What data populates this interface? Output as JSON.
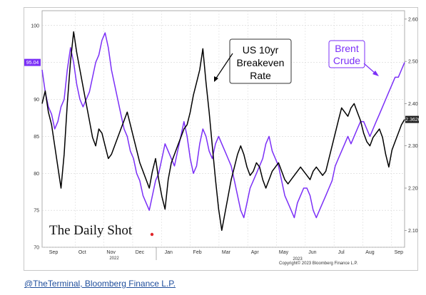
{
  "chart_data": {
    "type": "line",
    "x_labels": [
      "Sep",
      "Oct",
      "Nov",
      "Dec",
      "Jan",
      "Feb",
      "Mar",
      "Apr",
      "May",
      "Jun",
      "Jul",
      "Aug",
      "Sep"
    ],
    "year_labels": [
      "2022",
      "2023"
    ],
    "left_axis": {
      "ylim": [
        70,
        102
      ],
      "ticks": [
        70,
        75,
        80,
        85,
        90,
        95,
        100
      ],
      "units": "USD/bbl"
    },
    "right_axis": {
      "ylim": [
        2.06,
        2.62
      ],
      "ticks": [
        "2.10",
        "2.20",
        "2.30",
        "2.40",
        "2.50",
        "2.60"
      ]
    },
    "grid": true,
    "series": [
      {
        "name": "Brent Crude",
        "axis": "left",
        "color": "#7b2ff7",
        "last_value_label": "95.04",
        "values": [
          [
            0,
            94
          ],
          [
            1,
            91
          ],
          [
            2,
            89
          ],
          [
            3,
            88
          ],
          [
            4,
            86
          ],
          [
            5,
            87
          ],
          [
            6,
            89
          ],
          [
            7,
            90
          ],
          [
            8,
            94
          ],
          [
            9,
            97
          ],
          [
            10,
            95
          ],
          [
            11,
            92
          ],
          [
            12,
            90
          ],
          [
            13,
            89
          ],
          [
            14,
            90
          ],
          [
            15,
            91
          ],
          [
            16,
            93
          ],
          [
            17,
            95
          ],
          [
            18,
            96
          ],
          [
            19,
            98
          ],
          [
            20,
            99
          ],
          [
            21,
            97
          ],
          [
            22,
            94
          ],
          [
            23,
            92
          ],
          [
            24,
            90
          ],
          [
            25,
            88
          ],
          [
            26,
            86
          ],
          [
            27,
            85
          ],
          [
            28,
            83
          ],
          [
            29,
            82
          ],
          [
            30,
            80
          ],
          [
            31,
            79
          ],
          [
            32,
            77
          ],
          [
            33,
            76
          ],
          [
            34,
            75
          ],
          [
            35,
            77
          ],
          [
            36,
            79
          ],
          [
            37,
            80
          ],
          [
            38,
            82
          ],
          [
            39,
            84
          ],
          [
            40,
            83
          ],
          [
            41,
            82
          ],
          [
            42,
            81
          ],
          [
            43,
            83
          ],
          [
            44,
            85
          ],
          [
            45,
            87
          ],
          [
            46,
            85
          ],
          [
            47,
            82
          ],
          [
            48,
            80
          ],
          [
            49,
            81
          ],
          [
            50,
            84
          ],
          [
            51,
            86
          ],
          [
            52,
            85
          ],
          [
            53,
            83
          ],
          [
            54,
            82
          ],
          [
            55,
            84
          ],
          [
            56,
            85
          ],
          [
            57,
            84
          ],
          [
            58,
            83
          ],
          [
            59,
            82
          ],
          [
            60,
            81
          ],
          [
            61,
            79
          ],
          [
            62,
            77
          ],
          [
            63,
            75
          ],
          [
            64,
            74
          ],
          [
            65,
            76
          ],
          [
            66,
            78
          ],
          [
            67,
            79
          ],
          [
            68,
            80
          ],
          [
            69,
            81
          ],
          [
            70,
            82
          ],
          [
            71,
            84
          ],
          [
            72,
            85
          ],
          [
            73,
            83
          ],
          [
            74,
            82
          ],
          [
            75,
            81
          ],
          [
            76,
            79
          ],
          [
            77,
            77
          ],
          [
            78,
            76
          ],
          [
            79,
            75
          ],
          [
            80,
            74
          ],
          [
            81,
            76
          ],
          [
            82,
            77
          ],
          [
            83,
            78
          ],
          [
            84,
            78
          ],
          [
            85,
            77
          ],
          [
            86,
            75
          ],
          [
            87,
            74
          ],
          [
            88,
            75
          ],
          [
            89,
            76
          ],
          [
            90,
            77
          ],
          [
            91,
            78
          ],
          [
            92,
            79
          ],
          [
            93,
            81
          ],
          [
            94,
            82
          ],
          [
            95,
            83
          ],
          [
            96,
            84
          ],
          [
            97,
            85
          ],
          [
            98,
            84
          ],
          [
            99,
            85
          ],
          [
            100,
            86
          ],
          [
            101,
            87
          ],
          [
            102,
            87
          ],
          [
            103,
            86
          ],
          [
            104,
            85
          ],
          [
            105,
            86
          ],
          [
            106,
            87
          ],
          [
            107,
            88
          ],
          [
            108,
            89
          ],
          [
            109,
            90
          ],
          [
            110,
            91
          ],
          [
            111,
            92
          ],
          [
            112,
            93
          ],
          [
            113,
            93
          ],
          [
            114,
            94
          ],
          [
            115,
            95
          ]
        ]
      },
      {
        "name": "US 10yr Breakeven Rate",
        "axis": "right",
        "color": "#000000",
        "last_value_label": "2.3626",
        "values": [
          [
            0,
            2.4
          ],
          [
            1,
            2.43
          ],
          [
            2,
            2.38
          ],
          [
            3,
            2.35
          ],
          [
            4,
            2.3
          ],
          [
            5,
            2.25
          ],
          [
            6,
            2.2
          ],
          [
            7,
            2.28
          ],
          [
            8,
            2.4
          ],
          [
            9,
            2.5
          ],
          [
            10,
            2.57
          ],
          [
            11,
            2.52
          ],
          [
            12,
            2.48
          ],
          [
            13,
            2.44
          ],
          [
            14,
            2.4
          ],
          [
            15,
            2.36
          ],
          [
            16,
            2.32
          ],
          [
            17,
            2.3
          ],
          [
            18,
            2.34
          ],
          [
            19,
            2.33
          ],
          [
            20,
            2.3
          ],
          [
            21,
            2.27
          ],
          [
            22,
            2.28
          ],
          [
            23,
            2.3
          ],
          [
            24,
            2.32
          ],
          [
            25,
            2.34
          ],
          [
            26,
            2.36
          ],
          [
            27,
            2.38
          ],
          [
            28,
            2.35
          ],
          [
            29,
            2.32
          ],
          [
            30,
            2.29
          ],
          [
            31,
            2.26
          ],
          [
            32,
            2.24
          ],
          [
            33,
            2.22
          ],
          [
            34,
            2.2
          ],
          [
            35,
            2.24
          ],
          [
            36,
            2.27
          ],
          [
            37,
            2.22
          ],
          [
            38,
            2.18
          ],
          [
            39,
            2.15
          ],
          [
            40,
            2.22
          ],
          [
            41,
            2.26
          ],
          [
            42,
            2.28
          ],
          [
            43,
            2.3
          ],
          [
            44,
            2.32
          ],
          [
            45,
            2.34
          ],
          [
            46,
            2.35
          ],
          [
            47,
            2.38
          ],
          [
            48,
            2.42
          ],
          [
            49,
            2.45
          ],
          [
            50,
            2.48
          ],
          [
            51,
            2.53
          ],
          [
            52,
            2.45
          ],
          [
            53,
            2.38
          ],
          [
            54,
            2.3
          ],
          [
            55,
            2.22
          ],
          [
            56,
            2.15
          ],
          [
            57,
            2.1
          ],
          [
            58,
            2.14
          ],
          [
            59,
            2.18
          ],
          [
            60,
            2.22
          ],
          [
            61,
            2.25
          ],
          [
            62,
            2.28
          ],
          [
            63,
            2.3
          ],
          [
            64,
            2.28
          ],
          [
            65,
            2.25
          ],
          [
            66,
            2.23
          ],
          [
            67,
            2.24
          ],
          [
            68,
            2.26
          ],
          [
            69,
            2.25
          ],
          [
            70,
            2.22
          ],
          [
            71,
            2.2
          ],
          [
            72,
            2.22
          ],
          [
            73,
            2.24
          ],
          [
            74,
            2.25
          ],
          [
            75,
            2.26
          ],
          [
            76,
            2.24
          ],
          [
            77,
            2.22
          ],
          [
            78,
            2.21
          ],
          [
            79,
            2.22
          ],
          [
            80,
            2.23
          ],
          [
            81,
            2.24
          ],
          [
            82,
            2.25
          ],
          [
            83,
            2.24
          ],
          [
            84,
            2.23
          ],
          [
            85,
            2.22
          ],
          [
            86,
            2.24
          ],
          [
            87,
            2.25
          ],
          [
            88,
            2.24
          ],
          [
            89,
            2.23
          ],
          [
            90,
            2.24
          ],
          [
            91,
            2.27
          ],
          [
            92,
            2.3
          ],
          [
            93,
            2.33
          ],
          [
            94,
            2.36
          ],
          [
            95,
            2.39
          ],
          [
            96,
            2.38
          ],
          [
            97,
            2.37
          ],
          [
            98,
            2.39
          ],
          [
            99,
            2.4
          ],
          [
            100,
            2.38
          ],
          [
            101,
            2.36
          ],
          [
            102,
            2.33
          ],
          [
            103,
            2.31
          ],
          [
            104,
            2.3
          ],
          [
            105,
            2.32
          ],
          [
            106,
            2.33
          ],
          [
            107,
            2.34
          ],
          [
            108,
            2.32
          ],
          [
            109,
            2.28
          ],
          [
            110,
            2.25
          ],
          [
            111,
            2.29
          ],
          [
            112,
            2.31
          ],
          [
            113,
            2.33
          ],
          [
            114,
            2.35
          ],
          [
            115,
            2.3626
          ]
        ]
      }
    ],
    "annotations": [
      {
        "text": [
          "US 10yr",
          "Breakeven",
          "Rate"
        ],
        "series": "US 10yr Breakeven Rate"
      },
      {
        "text": [
          "Brent",
          "Crude"
        ],
        "series": "Brent Crude"
      }
    ],
    "watermark": "The Daily Shot",
    "copyright": "Copyright© 2023 Bloomberg Finance L.P."
  },
  "source_link": "@TheTerminal, Bloomberg Finance L.P."
}
